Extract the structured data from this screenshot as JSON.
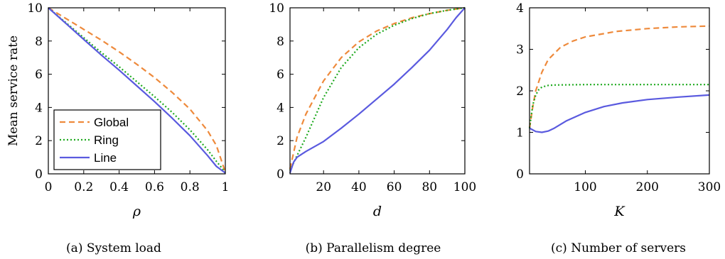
{
  "y_axis_label": "Mean service rate",
  "legend": [
    {
      "label": "Global",
      "color": "#ee8a3c",
      "dash": "8,5"
    },
    {
      "label": "Ring",
      "color": "#1faa1f",
      "dash": "2,3"
    },
    {
      "label": "Line",
      "color": "#5a5adf",
      "dash": ""
    }
  ],
  "chart_data": [
    {
      "type": "line",
      "caption": "(a)  System load",
      "xlabel": "ρ",
      "ylabel": "Mean service rate",
      "xlim": [
        0,
        1
      ],
      "ylim": [
        0,
        10
      ],
      "xticks": [
        "0",
        "0.2",
        "0.4",
        "0.6",
        "0.8",
        "1"
      ],
      "xtick_values": [
        0,
        0.2,
        0.4,
        0.6,
        0.8,
        1
      ],
      "yticks": [
        "0",
        "2",
        "4",
        "6",
        "8",
        "10"
      ],
      "ytick_values": [
        0,
        2,
        4,
        6,
        8,
        10
      ],
      "legend_position": "bottom-left",
      "series": [
        {
          "name": "Global",
          "x": [
            0,
            0.1,
            0.2,
            0.3,
            0.4,
            0.5,
            0.6,
            0.7,
            0.8,
            0.9,
            0.95,
            1.0
          ],
          "y": [
            10,
            9.35,
            8.7,
            8.05,
            7.35,
            6.6,
            5.8,
            4.9,
            3.9,
            2.6,
            1.7,
            0.1
          ]
        },
        {
          "name": "Ring",
          "x": [
            0,
            0.1,
            0.2,
            0.3,
            0.4,
            0.5,
            0.6,
            0.7,
            0.8,
            0.9,
            0.95,
            1.0
          ],
          "y": [
            10,
            9.1,
            8.2,
            7.3,
            6.45,
            5.55,
            4.65,
            3.7,
            2.65,
            1.45,
            0.75,
            0.1
          ]
        },
        {
          "name": "Line",
          "x": [
            0,
            0.1,
            0.2,
            0.3,
            0.4,
            0.5,
            0.6,
            0.7,
            0.8,
            0.9,
            0.95,
            1.0
          ],
          "y": [
            10,
            9.05,
            8.1,
            7.15,
            6.25,
            5.3,
            4.35,
            3.35,
            2.3,
            1.1,
            0.45,
            0.05
          ]
        }
      ]
    },
    {
      "type": "line",
      "caption": "(b)  Parallelism degree",
      "xlabel": "d",
      "ylabel": "",
      "xlim": [
        1,
        100
      ],
      "ylim": [
        0,
        10
      ],
      "xticks": [
        "20",
        "40",
        "60",
        "80",
        "100"
      ],
      "xtick_values": [
        20,
        40,
        60,
        80,
        100
      ],
      "yticks": [
        "0",
        "2",
        "4",
        "6",
        "8",
        "10"
      ],
      "ytick_values": [
        0,
        2,
        4,
        6,
        8,
        10
      ],
      "series": [
        {
          "name": "Global",
          "x": [
            1,
            5,
            10,
            20,
            30,
            40,
            50,
            60,
            70,
            80,
            90,
            100
          ],
          "y": [
            0.3,
            2.2,
            3.6,
            5.6,
            7.0,
            7.95,
            8.6,
            9.05,
            9.4,
            9.65,
            9.85,
            10
          ]
        },
        {
          "name": "Ring",
          "x": [
            1,
            5,
            10,
            20,
            30,
            40,
            50,
            60,
            70,
            80,
            90,
            100
          ],
          "y": [
            0.2,
            1.1,
            2.2,
            4.6,
            6.4,
            7.6,
            8.4,
            8.95,
            9.35,
            9.65,
            9.85,
            10
          ]
        },
        {
          "name": "Line",
          "x": [
            1,
            3,
            5,
            10,
            20,
            30,
            40,
            50,
            60,
            70,
            80,
            90,
            95,
            100
          ],
          "y": [
            0.05,
            0.7,
            1.0,
            1.35,
            1.95,
            2.75,
            3.6,
            4.5,
            5.4,
            6.4,
            7.45,
            8.7,
            9.4,
            10
          ]
        }
      ]
    },
    {
      "type": "line",
      "caption": "(c)  Number of servers",
      "xlabel": "K",
      "ylabel": "",
      "xlim": [
        10,
        300
      ],
      "ylim": [
        0,
        4
      ],
      "xticks": [
        "100",
        "200",
        "300"
      ],
      "xtick_values": [
        100,
        200,
        300
      ],
      "yticks": [
        "0",
        "1",
        "2",
        "3",
        "4"
      ],
      "ytick_values": [
        0,
        1,
        2,
        3,
        4
      ],
      "series": [
        {
          "name": "Global",
          "x": [
            10,
            15,
            20,
            30,
            40,
            60,
            80,
            100,
            150,
            200,
            250,
            300
          ],
          "y": [
            1.1,
            1.6,
            2.0,
            2.45,
            2.75,
            3.05,
            3.2,
            3.3,
            3.43,
            3.5,
            3.54,
            3.56
          ]
        },
        {
          "name": "Ring",
          "x": [
            10,
            15,
            20,
            25,
            30,
            40,
            50,
            100,
            200,
            300
          ],
          "y": [
            1.1,
            1.65,
            1.9,
            2.03,
            2.09,
            2.13,
            2.14,
            2.15,
            2.15,
            2.15
          ]
        },
        {
          "name": "Line",
          "x": [
            10,
            20,
            30,
            40,
            50,
            70,
            100,
            130,
            160,
            200,
            250,
            300
          ],
          "y": [
            1.1,
            1.02,
            1.0,
            1.03,
            1.1,
            1.28,
            1.48,
            1.62,
            1.71,
            1.79,
            1.85,
            1.9
          ]
        }
      ]
    }
  ]
}
